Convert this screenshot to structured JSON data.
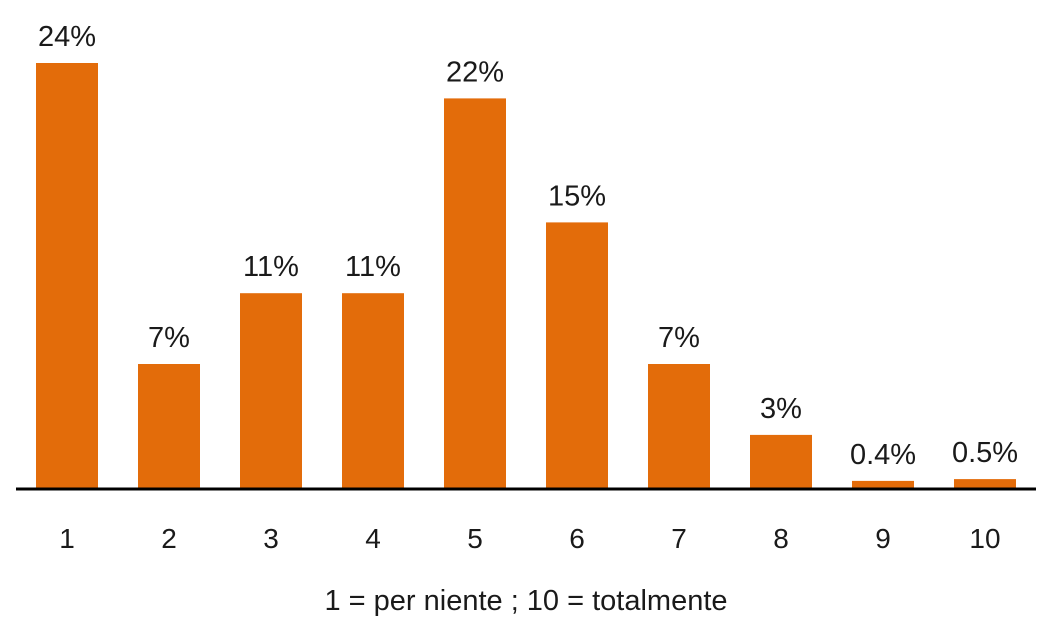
{
  "chart_data": {
    "type": "bar",
    "categories": [
      "1",
      "2",
      "3",
      "4",
      "5",
      "6",
      "7",
      "8",
      "9",
      "10"
    ],
    "values": [
      24,
      7,
      11,
      11,
      22,
      15,
      7,
      3,
      0.4,
      0.5
    ],
    "value_labels": [
      "24%",
      "7%",
      "11%",
      "11%",
      "22%",
      "15%",
      "7%",
      "3%",
      "0.4%",
      "0.5%"
    ],
    "title": "",
    "xlabel": "1 = per niente ; 10 = totalmente",
    "ylabel": "",
    "grid": false,
    "legend": "none",
    "bar_color": "#E36C0A",
    "axis_color": "#000000"
  }
}
